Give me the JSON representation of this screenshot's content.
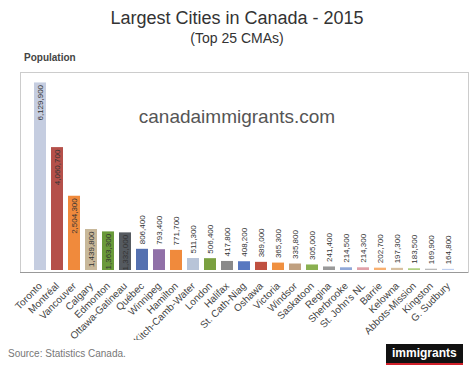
{
  "chart_data": {
    "type": "bar",
    "title": "Largest Cities in Canada - 2015",
    "subtitle": "(Top 25 CMAs)",
    "y_label": "Population",
    "watermark": "canadaimmigrants.com",
    "source": "Source: Statistics Canada.",
    "logo": "immigrants",
    "categories": [
      "Toronto",
      "Montréal",
      "Vancouver",
      "Calgary",
      "Edmonton",
      "Ottawa-Gatineau",
      "Québec",
      "Winnipeg",
      "Hamilton",
      "Kitch-Camb-Water",
      "London",
      "Halifax",
      "St. Cath-Niag",
      "Oshawa",
      "Victoria",
      "Windsor",
      "Saskatoon",
      "Regina",
      "Sherbrooke",
      "St. John's NL",
      "Barrie",
      "Kelowna",
      "Abbots-Mission",
      "Kingston",
      "G. Sudbury"
    ],
    "values": [
      6129900,
      4060700,
      2504300,
      1439800,
      1363300,
      1332000,
      806400,
      793400,
      771700,
      511300,
      506400,
      417800,
      408200,
      389000,
      365300,
      335800,
      305000,
      241400,
      214500,
      214300,
      202700,
      197300,
      183500,
      169900,
      164800
    ],
    "value_labels": [
      "6,129,900",
      "4,060,700",
      "2,504,300",
      "1,439,800",
      "1,363,300",
      "1,332,000",
      "806,400",
      "793,400",
      "771,700",
      "511,300",
      "506,400",
      "417,800",
      "408,200",
      "389,000",
      "365,300",
      "335,800",
      "305,000",
      "241,400",
      "214,500",
      "214,300",
      "202,700",
      "197,300",
      "183,500",
      "169,900",
      "164,800"
    ],
    "colors": [
      "#c5cde0",
      "#b5504a",
      "#f08a3c",
      "#c8b89a",
      "#6a9a3a",
      "#555a60",
      "#5470b0",
      "#9070a8",
      "#f08a3c",
      "#b8c4d8",
      "#7aa040",
      "#8a8a8a",
      "#5878c0",
      "#c05040",
      "#f09040",
      "#c0a080",
      "#8ab050",
      "#999999",
      "#90a8d8",
      "#e0a0a8",
      "#f8b070",
      "#d8c0a0",
      "#b0d080",
      "#bbbbbb",
      "#c0d0f0"
    ],
    "ylim": [
      0,
      6400000
    ],
    "yticks": [],
    "tick_labels": "x",
    "data_labels": true
  }
}
